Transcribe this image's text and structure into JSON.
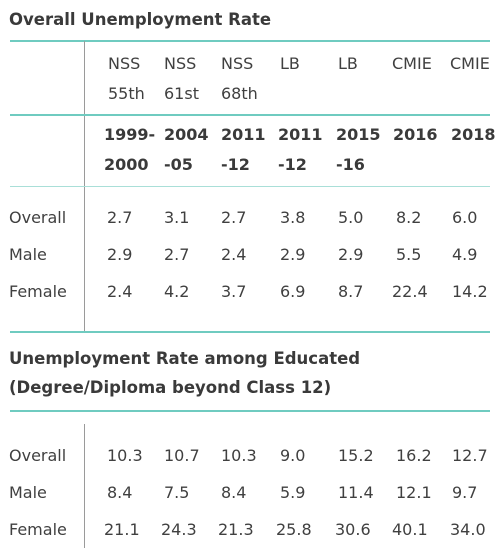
{
  "section1": {
    "title": "Overall Unemployment Rate",
    "sources": [
      {
        "line1": "NSS",
        "line2": "55th"
      },
      {
        "line1": "NSS",
        "line2": "61st"
      },
      {
        "line1": "NSS",
        "line2": "68th"
      },
      {
        "line1": "LB",
        "line2": ""
      },
      {
        "line1": "LB",
        "line2": ""
      },
      {
        "line1": "CMIE",
        "line2": ""
      },
      {
        "line1": "CMIE",
        "line2": ""
      }
    ],
    "years": [
      {
        "line1": "1999-",
        "line2": "2000"
      },
      {
        "line1": "2004",
        "line2": "-05"
      },
      {
        "line1": "2011",
        "line2": "-12"
      },
      {
        "line1": "2011",
        "line2": "-12"
      },
      {
        "line1": "2015",
        "line2": "-16"
      },
      {
        "line1": "2016",
        "line2": ""
      },
      {
        "line1": "2018",
        "line2": ""
      }
    ],
    "rows": [
      {
        "label": "Overall",
        "values": [
          "2.7",
          "3.1",
          "2.7",
          "3.8",
          "5.0",
          "8.2",
          "6.0"
        ]
      },
      {
        "label": "Male",
        "values": [
          "2.9",
          "2.7",
          "2.4",
          "2.9",
          "2.9",
          "5.5",
          "4.9"
        ]
      },
      {
        "label": "Female",
        "values": [
          "2.4",
          "4.2",
          "3.7",
          "6.9",
          "8.7",
          "22.4",
          "14.2"
        ]
      }
    ]
  },
  "section2": {
    "title_line1": "Unemployment Rate among Educated",
    "title_line2": "(Degree/Diploma beyond Class 12)",
    "rows": [
      {
        "label": "Overall",
        "values": [
          "10.3",
          "10.7",
          "10.3",
          "9.0",
          "15.2",
          "16.2",
          "12.7"
        ]
      },
      {
        "label": "Male",
        "values": [
          "8.4",
          "7.5",
          "8.4",
          "5.9",
          "11.4",
          "12.1",
          "9.7"
        ]
      },
      {
        "label": "Female",
        "values": [
          "21.1",
          "24.3",
          "21.3",
          "25.8",
          "30.6",
          "40.1",
          "34.0"
        ]
      }
    ]
  },
  "colors": {
    "rule_accent": "#6fcbc0",
    "rule_light": "#a9dfd8",
    "divider": "#9a9a9a",
    "text": "#404040"
  }
}
